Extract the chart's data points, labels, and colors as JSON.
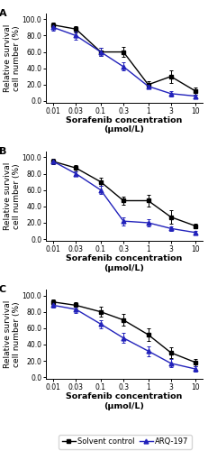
{
  "x_positions": [
    0.01,
    0.03,
    0.1,
    0.3,
    1,
    3,
    10
  ],
  "x_labels": [
    "0.01",
    "0.03",
    "0.1",
    "0.3",
    "1",
    "3",
    "10"
  ],
  "panels": [
    {
      "label": "A",
      "solvent_y": [
        93,
        88,
        60,
        60,
        20,
        30,
        12
      ],
      "solvent_err": [
        3,
        4,
        5,
        6,
        4,
        8,
        4
      ],
      "arq_y": [
        90,
        80,
        60,
        42,
        18,
        9,
        6
      ],
      "arq_err": [
        4,
        5,
        5,
        5,
        3,
        3,
        2
      ]
    },
    {
      "label": "B",
      "solvent_y": [
        95,
        87,
        70,
        47,
        47,
        27,
        16
      ],
      "solvent_err": [
        3,
        4,
        5,
        5,
        7,
        8,
        3
      ],
      "arq_y": [
        95,
        80,
        60,
        22,
        20,
        13,
        8
      ],
      "arq_err": [
        2,
        3,
        5,
        5,
        4,
        3,
        2
      ]
    },
    {
      "label": "C",
      "solvent_y": [
        92,
        88,
        80,
        70,
        52,
        30,
        18
      ],
      "solvent_err": [
        3,
        4,
        6,
        7,
        8,
        7,
        4
      ],
      "arq_y": [
        88,
        83,
        65,
        48,
        32,
        17,
        10
      ],
      "arq_err": [
        3,
        4,
        5,
        6,
        6,
        5,
        3
      ]
    }
  ],
  "ylim": [
    -2,
    107
  ],
  "yticks": [
    0.0,
    20.0,
    40.0,
    60.0,
    80.0,
    100.0
  ],
  "ylabel": "Relative survival\ncell number (%)",
  "xlabel_line1": "Sorafenib concentration",
  "xlabel_line2": "(μmol/L)",
  "solvent_color": "#000000",
  "arq_color": "#2222bb",
  "legend_labels": [
    "Solvent control",
    "ARQ-197"
  ],
  "panel_label_fontsize": 8,
  "axis_label_fontsize": 6.5,
  "tick_fontsize": 5.5,
  "legend_fontsize": 6
}
